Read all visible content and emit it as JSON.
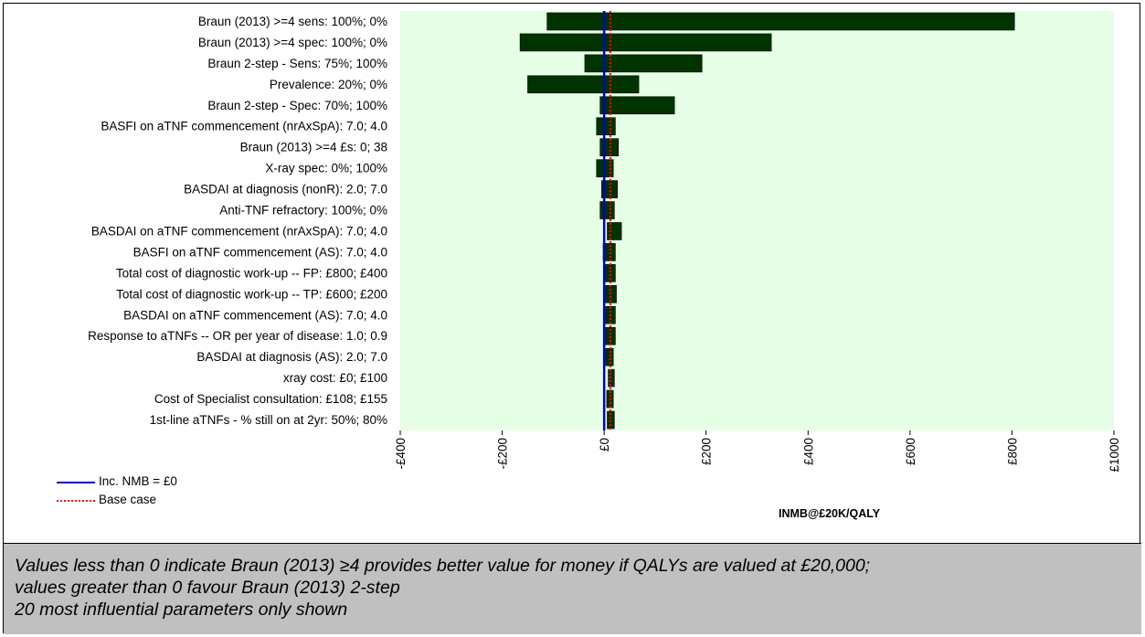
{
  "chart_data": {
    "type": "bar",
    "orientation": "horizontal",
    "xlabel": "INMB@£20K/QALY",
    "xlim": [
      -400,
      1000
    ],
    "xticks": [
      -400,
      -200,
      0,
      200,
      400,
      600,
      800,
      1000
    ],
    "xtick_labels": [
      "-£400",
      "-£200",
      "£0",
      "£200",
      "£400",
      "£600",
      "£800",
      "£1000"
    ],
    "base_case": 12,
    "reference_line": 0,
    "plot_background": "#e6ffe6",
    "bar_color": "#003300",
    "reference_line_color": "#0000cc",
    "base_case_color": "#ff0000",
    "legend_position": "bottom-left",
    "legend": [
      {
        "label": "Inc. NMB = £0",
        "style": "solid",
        "color": "#0000cc"
      },
      {
        "label": "Base case",
        "style": "dotted",
        "color": "#ff0000"
      }
    ],
    "parameters": [
      {
        "label": "Braun (2013) >=4 sens: 100%; 0%",
        "low": -112,
        "high": 805
      },
      {
        "label": "Braun (2013) >=4 spec: 100%; 0%",
        "low": -165,
        "high": 328
      },
      {
        "label": "Braun 2-step - Sens: 75%; 100%",
        "low": -38,
        "high": 192
      },
      {
        "label": "Prevalence: 20%; 0%",
        "low": -150,
        "high": 68
      },
      {
        "label": "Braun 2-step - Spec: 70%; 100%",
        "low": -8,
        "high": 138
      },
      {
        "label": "BASFI on aTNF commencement (nrAxSpA): 7.0; 4.0",
        "low": -15,
        "high": 22
      },
      {
        "label": "Braun (2013) >=4 £s: 0; 38",
        "low": -8,
        "high": 28
      },
      {
        "label": "X-ray spec: 0%; 100%",
        "low": -15,
        "high": 18
      },
      {
        "label": "BASDAI at diagnosis (nonR): 2.0; 7.0",
        "low": -5,
        "high": 26
      },
      {
        "label": "Anti-TNF refractory: 100%; 0%",
        "low": -8,
        "high": 20
      },
      {
        "label": "BASDAI on aTNF commencement (nrAxSpA): 7.0; 4.0",
        "low": 6,
        "high": 34
      },
      {
        "label": "BASFI on aTNF commencement (AS): 7.0; 4.0",
        "low": -2,
        "high": 22
      },
      {
        "label": "Total cost of diagnostic work-up -- FP: £800; £400",
        "low": 2,
        "high": 22
      },
      {
        "label": "Total cost of diagnostic work-up -- TP: £600; £200",
        "low": 3,
        "high": 24
      },
      {
        "label": "BASDAI on aTNF commencement (AS): 7.0; 4.0",
        "low": 3,
        "high": 22
      },
      {
        "label": "Response to aTNFs -- OR per year of disease: 1.0; 0.9",
        "low": 3,
        "high": 22
      },
      {
        "label": "BASDAI at diagnosis (AS): 2.0; 7.0",
        "low": 3,
        "high": 18
      },
      {
        "label": "xray cost: £0; £100",
        "low": 8,
        "high": 20
      },
      {
        "label": "Cost of Specialist consultation: £108; £155",
        "low": 5,
        "high": 18
      },
      {
        "label": "1st-line aTNFs - % still on at 2yr: 50%; 80%",
        "low": 6,
        "high": 20
      }
    ]
  },
  "caption": {
    "lines": [
      "Values less than 0 indicate Braun (2013) ≥4 provides better value for money if QALYs are valued at £20,000;",
      "values greater than 0 favour Braun (2013) 2-step",
      "20 most influential parameters only shown"
    ]
  }
}
